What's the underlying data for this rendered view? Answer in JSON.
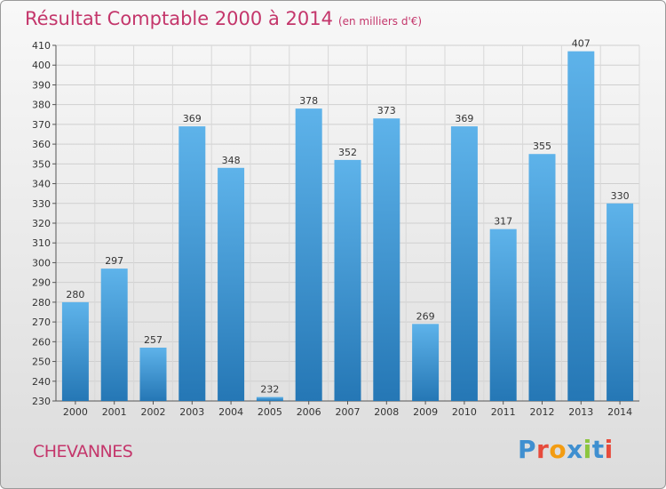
{
  "header": {
    "title": "Résultat Comptable 2000 à 2014",
    "subtitle": "(en milliers d'€)"
  },
  "footer": {
    "place": "CHEVANNES",
    "logo": "Proxiti"
  },
  "colors": {
    "bar_top": "#5eb3ea",
    "bar_bottom": "#2577b5",
    "title": "#c4366b",
    "logo_letters": [
      "#3f8fd0",
      "#e74b3c",
      "#f39c12",
      "#3f8fd0",
      "#8cc63f",
      "#3f8fd0",
      "#e74b3c"
    ]
  },
  "chart_data": {
    "type": "bar",
    "title": "Résultat Comptable 2000 à 2014",
    "subtitle": "(en milliers d'€)",
    "categories": [
      "2000",
      "2001",
      "2002",
      "2003",
      "2004",
      "2005",
      "2006",
      "2007",
      "2008",
      "2009",
      "2010",
      "2011",
      "2012",
      "2013",
      "2014"
    ],
    "values": [
      280,
      297,
      257,
      369,
      348,
      232,
      378,
      352,
      373,
      269,
      369,
      317,
      355,
      407,
      330
    ],
    "ylim": [
      230,
      410
    ],
    "ytick_step": 10,
    "grid": true,
    "data_labels": true,
    "legend": "none"
  }
}
